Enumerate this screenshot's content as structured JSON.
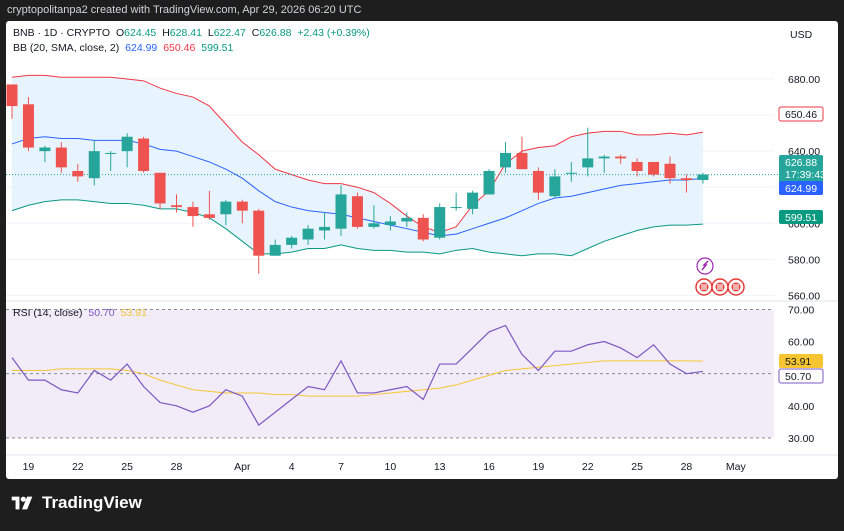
{
  "header": {
    "caption": "cryptopolitanpa2 created with TradingView.com, Apr 29, 2026 06:20 UTC"
  },
  "legend": {
    "symbol": "BNB · 1D · CRYPTO",
    "open_label": "O",
    "open": "624.45",
    "high_label": "H",
    "high": "628.41",
    "low_label": "L",
    "low": "622.47",
    "close_label": "C",
    "close": "626.88",
    "change": "+2.43 (+0.39%)",
    "bb_label": "BB (20, SMA, close, 2)",
    "bb_basis": "624.99",
    "bb_upper": "650.46",
    "bb_lower": "599.51",
    "rsi_label": "RSI (14, close)",
    "rsi_value": "50.70",
    "rsi_ma": "53.91"
  },
  "price_axis": {
    "currency": "USD",
    "ticks": [
      "680.00",
      "660.00",
      "640.00",
      "620.00",
      "600.00",
      "580.00",
      "560.00"
    ],
    "last_price": "626.88",
    "countdown": "17:39:43",
    "basis_tag": "624.99",
    "upper_tag": "650.46",
    "lower_tag": "599.51"
  },
  "rsi_axis": {
    "ticks": [
      "70.00",
      "60.00",
      "50.00",
      "40.00",
      "30.00"
    ],
    "rsi_tag": "50.70",
    "ma_tag": "53.91"
  },
  "time_axis": {
    "labels": [
      {
        "text": "19",
        "i": 1
      },
      {
        "text": "22",
        "i": 4
      },
      {
        "text": "25",
        "i": 7
      },
      {
        "text": "28",
        "i": 10
      },
      {
        "text": "Apr",
        "i": 14
      },
      {
        "text": "4",
        "i": 17
      },
      {
        "text": "7",
        "i": 20
      },
      {
        "text": "10",
        "i": 23
      },
      {
        "text": "13",
        "i": 26
      },
      {
        "text": "16",
        "i": 29
      },
      {
        "text": "19",
        "i": 32
      },
      {
        "text": "22",
        "i": 35
      },
      {
        "text": "25",
        "i": 38
      },
      {
        "text": "28",
        "i": 41
      },
      {
        "text": "May",
        "i": 44
      }
    ]
  },
  "branding": {
    "logo_text": "TradingView"
  },
  "colors": {
    "up": "#26a69a",
    "down": "#ef5350",
    "basis": "#2962ff",
    "upper": "#f23645",
    "lower": "#089981",
    "band_fill": "#e3f2fd",
    "rsi": "#7e57c2",
    "rsi_ma": "#f7c531",
    "rsi_fill": "#ede7f6"
  },
  "chart_data": [
    {
      "type": "candlestick",
      "title": "BNB · 1D · CRYPTO",
      "ylim": [
        558,
        690
      ],
      "candles": [
        {
          "o": 677,
          "h": 677,
          "l": 658,
          "c": 665
        },
        {
          "o": 666,
          "h": 670,
          "l": 640,
          "c": 642
        },
        {
          "o": 640,
          "h": 643,
          "l": 634,
          "c": 642
        },
        {
          "o": 642,
          "h": 645,
          "l": 628,
          "c": 631
        },
        {
          "o": 629,
          "h": 633,
          "l": 623,
          "c": 626
        },
        {
          "o": 625,
          "h": 646,
          "l": 621,
          "c": 640
        },
        {
          "o": 639,
          "h": 640,
          "l": 629,
          "c": 639
        },
        {
          "o": 640,
          "h": 650,
          "l": 631,
          "c": 648
        },
        {
          "o": 647,
          "h": 648,
          "l": 628,
          "c": 629
        },
        {
          "o": 628,
          "h": 628,
          "l": 608,
          "c": 611
        },
        {
          "o": 610,
          "h": 616,
          "l": 606,
          "c": 609
        },
        {
          "o": 609,
          "h": 612,
          "l": 598,
          "c": 604
        },
        {
          "o": 605,
          "h": 618,
          "l": 602,
          "c": 603
        },
        {
          "o": 605,
          "h": 613,
          "l": 599,
          "c": 612
        },
        {
          "o": 612,
          "h": 613,
          "l": 600,
          "c": 607
        },
        {
          "o": 607,
          "h": 608,
          "l": 572,
          "c": 582
        },
        {
          "o": 582,
          "h": 591,
          "l": 582,
          "c": 588
        },
        {
          "o": 588,
          "h": 593,
          "l": 586,
          "c": 592
        },
        {
          "o": 591,
          "h": 599,
          "l": 588,
          "c": 597
        },
        {
          "o": 596,
          "h": 606,
          "l": 591,
          "c": 598
        },
        {
          "o": 597,
          "h": 621,
          "l": 593,
          "c": 616
        },
        {
          "o": 615,
          "h": 617,
          "l": 597,
          "c": 598
        },
        {
          "o": 598,
          "h": 610,
          "l": 597,
          "c": 600
        },
        {
          "o": 599,
          "h": 604,
          "l": 596,
          "c": 601
        },
        {
          "o": 601,
          "h": 606,
          "l": 598,
          "c": 603
        },
        {
          "o": 603,
          "h": 605,
          "l": 590,
          "c": 591
        },
        {
          "o": 592,
          "h": 611,
          "l": 591,
          "c": 609
        },
        {
          "o": 609,
          "h": 617,
          "l": 607,
          "c": 609
        },
        {
          "o": 608,
          "h": 618,
          "l": 605,
          "c": 617
        },
        {
          "o": 616,
          "h": 630,
          "l": 616,
          "c": 629
        },
        {
          "o": 631,
          "h": 645,
          "l": 628,
          "c": 639
        },
        {
          "o": 639,
          "h": 648,
          "l": 630,
          "c": 630
        },
        {
          "o": 629,
          "h": 631,
          "l": 613,
          "c": 617
        },
        {
          "o": 615,
          "h": 630,
          "l": 614,
          "c": 626
        },
        {
          "o": 628,
          "h": 634,
          "l": 623,
          "c": 628
        },
        {
          "o": 631,
          "h": 653,
          "l": 626,
          "c": 636
        },
        {
          "o": 636,
          "h": 638,
          "l": 628,
          "c": 637
        },
        {
          "o": 637,
          "h": 638,
          "l": 633,
          "c": 636
        },
        {
          "o": 634,
          "h": 636,
          "l": 626,
          "c": 629
        },
        {
          "o": 634,
          "h": 634,
          "l": 626,
          "c": 627
        },
        {
          "o": 633,
          "h": 637,
          "l": 622,
          "c": 625
        },
        {
          "o": 625,
          "h": 627,
          "l": 617,
          "c": 624
        },
        {
          "o": 624,
          "h": 628,
          "l": 622,
          "c": 627
        }
      ],
      "bollinger": {
        "upper": [
          681,
          682,
          682,
          681,
          681,
          681,
          681,
          680,
          679,
          675,
          672,
          670,
          665,
          655,
          645,
          638,
          630,
          627,
          624,
          622,
          622,
          620,
          617,
          611,
          604,
          598,
          595,
          598,
          610,
          618,
          633,
          640,
          642,
          643,
          648,
          650,
          651,
          651,
          649,
          649,
          650,
          649,
          650.46
        ],
        "basis": [
          644,
          647,
          648,
          647,
          647,
          646,
          646,
          646,
          644,
          641,
          640,
          637,
          634,
          630,
          625,
          618,
          612,
          609,
          607,
          606,
          605,
          603,
          601,
          599,
          597,
          595,
          593,
          594,
          597,
          600,
          603,
          607,
          611,
          614,
          615,
          617,
          619,
          621,
          622,
          623,
          624,
          624,
          624.99
        ],
        "lower": [
          607,
          610,
          612,
          613,
          613,
          612,
          611,
          611,
          610,
          608,
          608,
          606,
          603,
          597,
          590,
          583,
          583,
          584,
          586,
          586,
          588,
          586,
          585,
          585,
          584,
          584,
          583,
          585,
          586,
          584,
          583,
          582,
          583,
          583,
          582,
          586,
          590,
          593,
          596,
          598,
          599,
          599,
          599.51
        ]
      },
      "rsi_panel": {
        "ylim": [
          25,
          72
        ],
        "rsi": [
          55,
          48,
          48,
          45,
          44,
          51,
          48,
          53,
          46,
          41,
          40,
          38,
          40,
          45,
          43,
          34,
          38,
          42,
          46,
          45,
          54,
          44,
          44,
          45,
          46,
          42,
          53,
          53,
          58,
          63,
          65,
          56,
          51,
          57,
          57,
          59,
          60,
          58,
          55,
          59,
          53,
          50,
          50.7
        ],
        "rsi_ma": [
          51,
          51,
          51,
          51.5,
          51.5,
          51.5,
          51.5,
          51,
          50,
          48,
          46.5,
          45,
          44.5,
          44,
          44,
          44,
          43.5,
          43.5,
          43,
          43,
          43,
          43,
          43.5,
          44,
          44.5,
          45,
          45.5,
          46.5,
          48,
          49.5,
          51,
          51.5,
          52,
          52.5,
          53,
          53.5,
          54,
          54,
          54,
          54,
          54,
          54,
          53.91
        ],
        "levels": [
          70,
          50,
          30
        ]
      }
    }
  ]
}
